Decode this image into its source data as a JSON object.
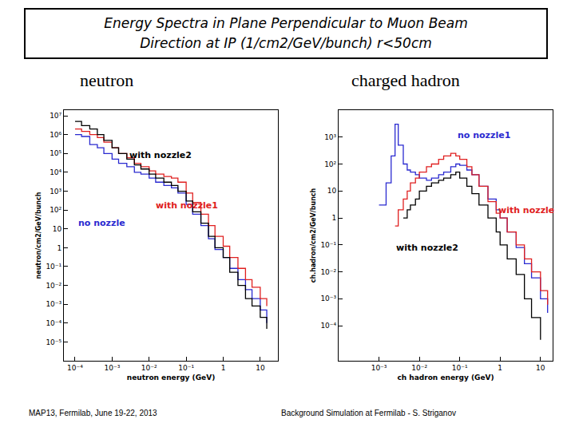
{
  "slide": {
    "title": [
      "Energy Spectra in Plane Perpendicular to Muon Beam",
      "Direction at IP (1/cm2/GeV/bunch) r<50cm"
    ],
    "footer": [
      "MAP13, Fermilab, June 19-22, 2013",
      "Background Simulation at Fermilab - S. Striganov"
    ]
  },
  "chart_data": [
    {
      "type": "line",
      "title": "neutron",
      "line_style": "step",
      "log": true,
      "grid": false,
      "x_label": "neutron energy (GeV)",
      "y_label": "neutron/cm2/GeV/bunch",
      "xlim": [
        5e-05,
        30
      ],
      "xticks": [
        {
          "value": 0.0001,
          "label": "10⁻⁴"
        },
        {
          "value": 0.001,
          "label": "10⁻³"
        },
        {
          "value": 0.01,
          "label": "10⁻²"
        },
        {
          "value": 0.1,
          "label": "10⁻¹"
        },
        1,
        10
      ],
      "ylim": [
        1e-06,
        20000000
      ],
      "yticks": [
        {
          "value": 1e-05,
          "label": "10⁻⁵"
        },
        {
          "value": 0.0001,
          "label": "10⁻⁴"
        },
        {
          "value": 0.001,
          "label": "10⁻³"
        },
        {
          "value": 0.01,
          "label": "10⁻²"
        },
        {
          "value": 0.1,
          "label": "10⁻¹"
        },
        1,
        10,
        {
          "value": 100,
          "label": "10²"
        },
        {
          "value": 1000,
          "label": "10³"
        },
        {
          "value": 10000,
          "label": "10⁴"
        },
        {
          "value": 100000,
          "label": "10⁵"
        },
        {
          "value": 1000000,
          "label": "10⁶"
        },
        {
          "value": 10000000,
          "label": "10⁷"
        }
      ],
      "x": [
        0.0001,
        0.00015,
        0.00025,
        0.0004,
        0.0006,
        0.001,
        0.0015,
        0.0025,
        0.004,
        0.006,
        0.01,
        0.015,
        0.025,
        0.04,
        0.06,
        0.1,
        0.15,
        0.25,
        0.4,
        0.6,
        1,
        1.5,
        2.5,
        4,
        6,
        10,
        15
      ],
      "series": [
        {
          "name": "no nozzle",
          "color": "#2a2ad0",
          "values": [
            1000000,
            800000,
            300000,
            200000,
            100000,
            50000,
            30000,
            20000,
            10000,
            8000,
            5000,
            3000,
            2000,
            1500,
            800,
            200,
            60,
            15,
            3,
            0.8,
            0.3,
            0.08,
            0.02,
            0.006,
            0.002,
            0.0005,
            0.0001
          ]
        },
        {
          "name": "with nozzle1",
          "color": "#e02020",
          "values": [
            2000000,
            1500000,
            1000000,
            700000,
            400000,
            200000,
            100000,
            60000,
            30000,
            20000,
            12000,
            8000,
            6000,
            5000,
            3000,
            800,
            250,
            60,
            15,
            4,
            1.2,
            0.3,
            0.08,
            0.02,
            0.008,
            0.002,
            0.0008
          ]
        },
        {
          "name": "with nozzle2",
          "color": "#000000",
          "values": [
            5000000,
            3000000,
            2000000,
            1000000,
            500000,
            200000,
            100000,
            50000,
            25000,
            15000,
            8000,
            5000,
            3000,
            2000,
            1000,
            300,
            80,
            20,
            4,
            1,
            0.3,
            0.05,
            0.01,
            0.002,
            0.0008,
            0.0002,
            5e-05
          ]
        }
      ]
    },
    {
      "type": "line",
      "title": "charged hadron",
      "line_style": "step",
      "log": true,
      "grid": false,
      "x_label": "ch hadron energy (GeV)",
      "y_label": "ch.hadron/cm2/GeV/bunch",
      "xlim": [
        0.0001,
        20
      ],
      "xticks": [
        {
          "value": 0.001,
          "label": "10⁻³"
        },
        {
          "value": 0.01,
          "label": "10⁻²"
        },
        {
          "value": 0.1,
          "label": "10⁻¹"
        },
        1,
        10
      ],
      "ylim": [
        5e-06,
        10000
      ],
      "yticks": [
        {
          "value": 0.0001,
          "label": "10⁻⁴"
        },
        {
          "value": 0.001,
          "label": "10⁻³"
        },
        {
          "value": 0.01,
          "label": "10⁻²"
        },
        {
          "value": 0.1,
          "label": "10⁻¹"
        },
        1,
        10,
        {
          "value": 100,
          "label": "10²"
        },
        {
          "value": 1000,
          "label": "10³"
        }
      ],
      "x": [
        0.001,
        0.0015,
        0.002,
        0.0025,
        0.003,
        0.004,
        0.005,
        0.006,
        0.008,
        0.01,
        0.015,
        0.02,
        0.03,
        0.04,
        0.06,
        0.08,
        0.1,
        0.15,
        0.2,
        0.3,
        0.5,
        0.8,
        1,
        1.5,
        2.5,
        4,
        6,
        10,
        15
      ],
      "series": [
        {
          "name": "no nozzle1",
          "color": "#2a2ad0",
          "values": [
            3,
            20,
            200,
            3000,
            500,
            100,
            60,
            50,
            40,
            30,
            25,
            30,
            40,
            50,
            80,
            100,
            90,
            60,
            40,
            15,
            5,
            2,
            1,
            0.3,
            0.08,
            0.02,
            0.006,
            0.001,
            0.0003
          ]
        },
        {
          "name": "with nozzle",
          "color": "#e02020",
          "values": [
            null,
            null,
            null,
            0.5,
            2,
            5,
            10,
            20,
            30,
            50,
            80,
            100,
            150,
            200,
            250,
            200,
            150,
            80,
            40,
            15,
            4,
            1.5,
            1,
            0.3,
            0.1,
            0.03,
            0.01,
            0.002,
            0.0006
          ]
        },
        {
          "name": "with nozzle2",
          "color": "#000000",
          "values": [
            null,
            null,
            null,
            null,
            null,
            1,
            2,
            3,
            5,
            10,
            15,
            20,
            25,
            30,
            40,
            50,
            30,
            15,
            8,
            3,
            1,
            0.3,
            0.1,
            0.03,
            0.008,
            0.001,
            0.0002,
            3e-05,
            null
          ]
        }
      ]
    }
  ]
}
